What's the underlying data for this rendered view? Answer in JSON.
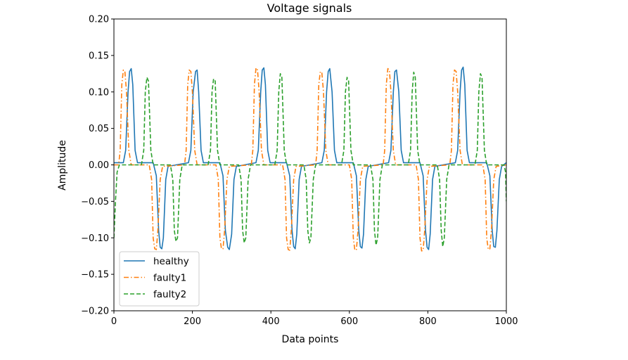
{
  "chart_data": {
    "type": "line",
    "title": "Voltage signals",
    "xlabel": "Data points",
    "ylabel": "Amplitude",
    "xlim": [
      0,
      1000
    ],
    "ylim": [
      -0.2,
      0.2
    ],
    "xticks": [
      0,
      200,
      400,
      600,
      800,
      1000
    ],
    "xtick_labels": [
      "0",
      "200",
      "400",
      "600",
      "800",
      "1000"
    ],
    "yticks": [
      -0.2,
      -0.15,
      -0.1,
      -0.05,
      0.0,
      0.05,
      0.1,
      0.15,
      0.2
    ],
    "ytick_labels": [
      "−0.20",
      "−0.15",
      "−0.10",
      "−0.05",
      "0.00",
      "0.05",
      "0.10",
      "0.15",
      "0.20"
    ],
    "grid": false,
    "legend_position": "lower-left",
    "series": [
      {
        "name": "healthy",
        "color": "#1f77b4",
        "linestyle": "solid",
        "x": [
          0,
          24,
          30,
          36,
          40,
          44,
          48,
          54,
          60,
          100,
          108,
          114,
          118,
          122,
          126,
          132,
          138,
          190,
          196,
          202,
          208,
          212,
          216,
          222,
          228,
          270,
          278,
          284,
          290,
          294,
          300,
          306,
          312,
          362,
          368,
          374,
          378,
          382,
          386,
          392,
          398,
          440,
          448,
          454,
          458,
          462,
          466,
          472,
          478,
          530,
          536,
          542,
          546,
          550,
          556,
          562,
          568,
          610,
          618,
          624,
          628,
          632,
          636,
          642,
          648,
          700,
          706,
          712,
          716,
          720,
          726,
          732,
          738,
          780,
          788,
          794,
          798,
          802,
          806,
          812,
          818,
          870,
          876,
          882,
          886,
          890,
          894,
          900,
          906,
          950,
          958,
          964,
          968,
          972,
          976,
          982,
          988,
          1000
        ],
        "y": [
          0.003,
          0.003,
          0.02,
          0.1,
          0.128,
          0.132,
          0.11,
          0.02,
          0.003,
          0.003,
          -0.015,
          -0.09,
          -0.113,
          -0.115,
          -0.1,
          -0.02,
          -0.002,
          0.003,
          0.02,
          0.1,
          0.128,
          0.13,
          0.1,
          0.02,
          0.003,
          0.003,
          -0.015,
          -0.09,
          -0.113,
          -0.116,
          -0.095,
          -0.02,
          -0.002,
          0.003,
          0.02,
          0.1,
          0.13,
          0.133,
          0.11,
          0.02,
          0.003,
          0.003,
          -0.015,
          -0.09,
          -0.112,
          -0.115,
          -0.095,
          -0.02,
          -0.002,
          0.003,
          0.02,
          0.1,
          0.128,
          0.132,
          0.1,
          0.02,
          0.003,
          0.003,
          -0.015,
          -0.09,
          -0.112,
          -0.114,
          -0.095,
          -0.02,
          -0.002,
          0.003,
          0.02,
          0.1,
          0.128,
          0.13,
          0.1,
          0.02,
          0.003,
          0.003,
          -0.015,
          -0.09,
          -0.113,
          -0.116,
          -0.095,
          -0.02,
          -0.002,
          0.003,
          0.02,
          0.1,
          0.13,
          0.134,
          0.11,
          0.02,
          0.003,
          0.003,
          -0.015,
          -0.09,
          -0.112,
          -0.113,
          -0.09,
          -0.02,
          -0.002,
          0.003
        ]
      },
      {
        "name": "faulty1",
        "color": "#ff7f0e",
        "linestyle": "dashdot",
        "x": [
          0,
          12,
          16,
          20,
          24,
          28,
          32,
          38,
          44,
          90,
          96,
          100,
          104,
          108,
          112,
          118,
          124,
          180,
          184,
          188,
          192,
          196,
          200,
          206,
          212,
          260,
          266,
          270,
          274,
          278,
          282,
          288,
          294,
          350,
          354,
          358,
          362,
          366,
          370,
          376,
          382,
          430,
          436,
          440,
          444,
          448,
          452,
          458,
          464,
          514,
          518,
          522,
          526,
          530,
          534,
          540,
          546,
          600,
          606,
          610,
          614,
          618,
          622,
          628,
          634,
          686,
          690,
          694,
          698,
          702,
          706,
          712,
          718,
          770,
          776,
          780,
          784,
          788,
          792,
          798,
          804,
          856,
          860,
          864,
          868,
          872,
          876,
          882,
          888,
          940,
          946,
          950,
          954,
          958,
          962,
          968,
          974,
          1000
        ],
        "y": [
          0.0,
          0.0,
          0.02,
          0.11,
          0.13,
          0.128,
          0.1,
          0.02,
          0.0,
          0.0,
          -0.02,
          -0.1,
          -0.115,
          -0.116,
          -0.09,
          -0.02,
          -0.002,
          0.0,
          0.02,
          0.11,
          0.13,
          0.128,
          0.1,
          0.02,
          0.0,
          0.0,
          -0.02,
          -0.1,
          -0.115,
          -0.115,
          -0.09,
          -0.02,
          -0.002,
          0.0,
          0.02,
          0.11,
          0.133,
          0.13,
          0.1,
          0.02,
          0.0,
          0.0,
          -0.02,
          -0.1,
          -0.116,
          -0.117,
          -0.09,
          -0.02,
          -0.002,
          0.0,
          0.02,
          0.11,
          0.128,
          0.126,
          0.1,
          0.02,
          0.0,
          0.0,
          -0.02,
          -0.1,
          -0.117,
          -0.116,
          -0.09,
          -0.02,
          -0.002,
          0.0,
          0.02,
          0.11,
          0.132,
          0.13,
          0.1,
          0.02,
          0.0,
          0.0,
          -0.02,
          -0.1,
          -0.118,
          -0.117,
          -0.09,
          -0.02,
          -0.002,
          0.0,
          0.02,
          0.11,
          0.13,
          0.128,
          0.1,
          0.02,
          0.0,
          0.0,
          -0.02,
          -0.1,
          -0.116,
          -0.115,
          -0.09,
          -0.02,
          -0.002,
          0.0
        ]
      },
      {
        "name": "faulty2",
        "color": "#2ca02c",
        "linestyle": "dashed",
        "x": [
          0,
          4,
          8,
          14,
          20,
          70,
          76,
          80,
          84,
          88,
          94,
          100,
          144,
          150,
          154,
          158,
          162,
          168,
          174,
          240,
          246,
          250,
          254,
          258,
          264,
          270,
          318,
          324,
          328,
          332,
          336,
          342,
          348,
          410,
          416,
          420,
          424,
          428,
          434,
          440,
          484,
          490,
          494,
          498,
          502,
          508,
          514,
          580,
          586,
          590,
          594,
          598,
          604,
          610,
          654,
          660,
          664,
          668,
          672,
          678,
          684,
          750,
          756,
          760,
          764,
          768,
          774,
          780,
          824,
          830,
          834,
          838,
          842,
          848,
          854,
          920,
          926,
          930,
          934,
          938,
          944,
          950,
          994,
          998,
          1000
        ],
        "y": [
          -0.1,
          -0.05,
          -0.01,
          0.0,
          0.0,
          0.0,
          0.02,
          0.1,
          0.12,
          0.115,
          0.02,
          0.0,
          0.0,
          -0.02,
          -0.09,
          -0.105,
          -0.1,
          -0.02,
          0.0,
          0.0,
          0.02,
          0.1,
          0.118,
          0.115,
          0.02,
          0.0,
          0.0,
          -0.02,
          -0.09,
          -0.107,
          -0.1,
          -0.02,
          0.0,
          0.0,
          0.02,
          0.1,
          0.125,
          0.12,
          0.02,
          0.0,
          0.0,
          -0.02,
          -0.09,
          -0.107,
          -0.1,
          -0.02,
          0.0,
          0.0,
          0.02,
          0.1,
          0.12,
          0.115,
          0.02,
          0.0,
          0.0,
          -0.02,
          -0.09,
          -0.11,
          -0.1,
          -0.02,
          0.0,
          0.0,
          0.02,
          0.1,
          0.127,
          0.12,
          0.02,
          0.0,
          0.0,
          -0.02,
          -0.09,
          -0.112,
          -0.1,
          -0.02,
          0.0,
          0.0,
          0.02,
          0.1,
          0.125,
          0.12,
          0.02,
          0.0,
          0.0,
          -0.01,
          -0.05
        ]
      }
    ]
  }
}
